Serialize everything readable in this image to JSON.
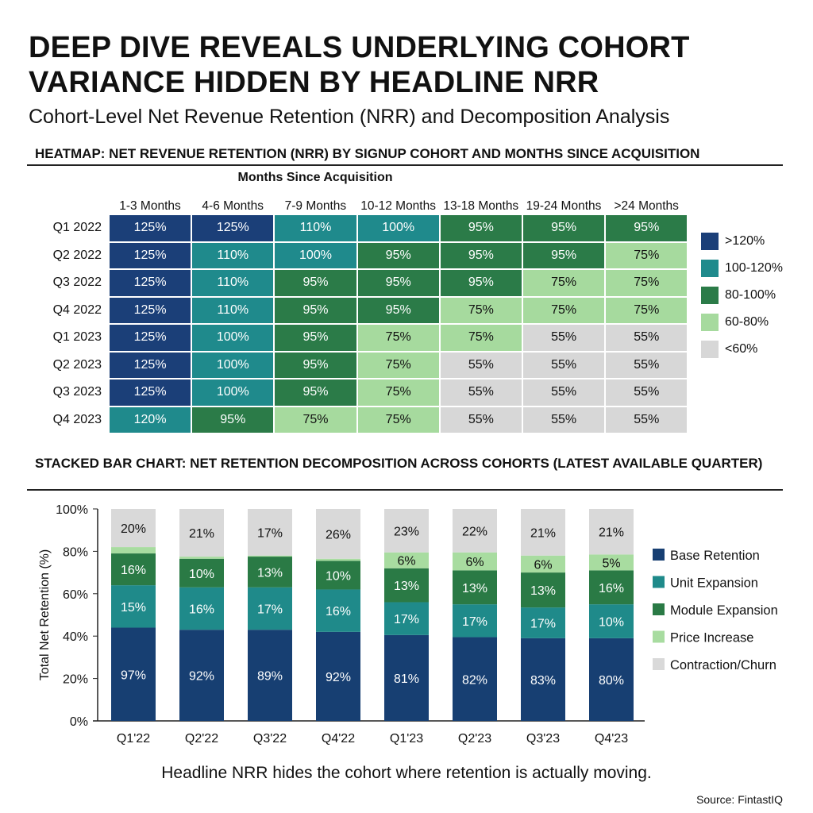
{
  "title": "DEEP DIVE REVEALS UNDERLYING COHORT VARIANCE HIDDEN BY HEADLINE NRR",
  "subtitle": "Cohort-Level Net Revenue Retention (NRR) and Decomposition Analysis",
  "footer": "Headline NRR hides the cohort where retention is actually moving.",
  "source": "Source: FintastIQ",
  "chart_data": [
    {
      "type": "heatmap",
      "title": "HEATMAP: NET REVENUE RETENTION (NRR) BY SIGNUP COHORT AND MONTHS SINCE ACQUISITION",
      "xlabel": "Months Since Acquisition",
      "columns": [
        "1-3 Months",
        "4-6 Months",
        "7-9 Months",
        "10-12 Months",
        "13-18 Months",
        "19-24 Months",
        ">24 Months"
      ],
      "rows": [
        "Q1 2022",
        "Q2 2022",
        "Q3 2022",
        "Q4 2022",
        "Q1 2023",
        "Q2 2023",
        "Q3 2023",
        "Q4 2023"
      ],
      "values": [
        [
          125,
          125,
          110,
          100,
          95,
          95,
          95
        ],
        [
          125,
          110,
          100,
          95,
          95,
          95,
          75
        ],
        [
          125,
          110,
          95,
          95,
          95,
          75,
          75
        ],
        [
          125,
          110,
          95,
          95,
          75,
          75,
          75
        ],
        [
          125,
          100,
          95,
          75,
          75,
          55,
          55
        ],
        [
          125,
          100,
          95,
          75,
          55,
          55,
          55
        ],
        [
          125,
          100,
          95,
          75,
          55,
          55,
          55
        ],
        [
          120,
          95,
          75,
          75,
          55,
          55,
          55
        ]
      ],
      "unit": "%",
      "legend_position": "right",
      "legend": [
        {
          "label": ">120%",
          "color": "#1b3f78"
        },
        {
          "label": "100-120%",
          "color": "#1f8a8c"
        },
        {
          "label": "80-100%",
          "color": "#2b7b48"
        },
        {
          "label": "60-80%",
          "color": "#a6da9e"
        },
        {
          "label": "<60%",
          "color": "#d7d7d7"
        }
      ]
    },
    {
      "type": "bar",
      "stacked": true,
      "title": "STACKED BAR CHART: NET RETENTION DECOMPOSITION ACROSS COHORTS (LATEST AVAILABLE QUARTER)",
      "xlabel": "",
      "ylabel": "Total Net Retention (%)",
      "ylim": [
        0,
        100
      ],
      "yticks": [
        "0%",
        "20%",
        "40%",
        "60%",
        "80%",
        "100%"
      ],
      "categories": [
        "Q1'22",
        "Q2'22",
        "Q3'22",
        "Q4'22",
        "Q1'23",
        "Q2'23",
        "Q3'23",
        "Q4'23"
      ],
      "legend_position": "right",
      "series": [
        {
          "name": "Base Retention",
          "color": "#173f72",
          "label_color": "#ffffff",
          "values": [
            44,
            43,
            43,
            42,
            40.5,
            39.5,
            39,
            39
          ],
          "labels": [
            "97%",
            "92%",
            "89%",
            "92%",
            "81%",
            "82%",
            "83%",
            "80%"
          ]
        },
        {
          "name": "Unit Expansion",
          "color": "#1f8a8a",
          "label_color": "#ffffff",
          "values": [
            20,
            20,
            20,
            20,
            15.5,
            15.5,
            14.5,
            16
          ],
          "labels": [
            "15%",
            "16%",
            "17%",
            "16%",
            "17%",
            "17%",
            "17%",
            "10%"
          ]
        },
        {
          "name": "Module Expansion",
          "color": "#2a7a45",
          "label_color": "#ffffff",
          "values": [
            15,
            13.5,
            14.5,
            13.5,
            16,
            16,
            16.5,
            16
          ],
          "labels": [
            "16%",
            "10%",
            "13%",
            "10%",
            "13%",
            "13%",
            "13%",
            "16%"
          ]
        },
        {
          "name": "Price Increase",
          "color": "#a8dca0",
          "label_color": "#111111",
          "values": [
            3,
            1,
            0.5,
            1,
            7.5,
            8.5,
            8,
            7.5
          ],
          "labels": [
            "",
            "",
            "",
            "",
            "6%",
            "6%",
            "6%",
            "5%"
          ]
        },
        {
          "name": "Contraction/Churn",
          "color": "#d9d9d9",
          "label_color": "#111111",
          "values": [
            18,
            22.5,
            22,
            23.5,
            20.5,
            20.5,
            22,
            21.5
          ],
          "labels": [
            "20%",
            "21%",
            "17%",
            "26%",
            "23%",
            "22%",
            "21%",
            "21%"
          ]
        }
      ]
    }
  ]
}
